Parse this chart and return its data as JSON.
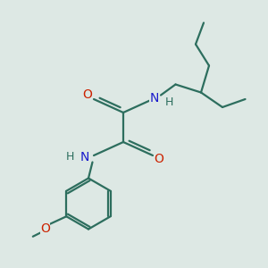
{
  "background_color": "#dde8e4",
  "bond_color": "#2d6e5e",
  "nitrogen_color": "#1a1acc",
  "oxygen_color": "#cc2200",
  "line_width": 1.6,
  "figsize": [
    3.0,
    3.0
  ],
  "dpi": 100,
  "xlim": [
    0,
    10
  ],
  "ylim": [
    0,
    10
  ]
}
